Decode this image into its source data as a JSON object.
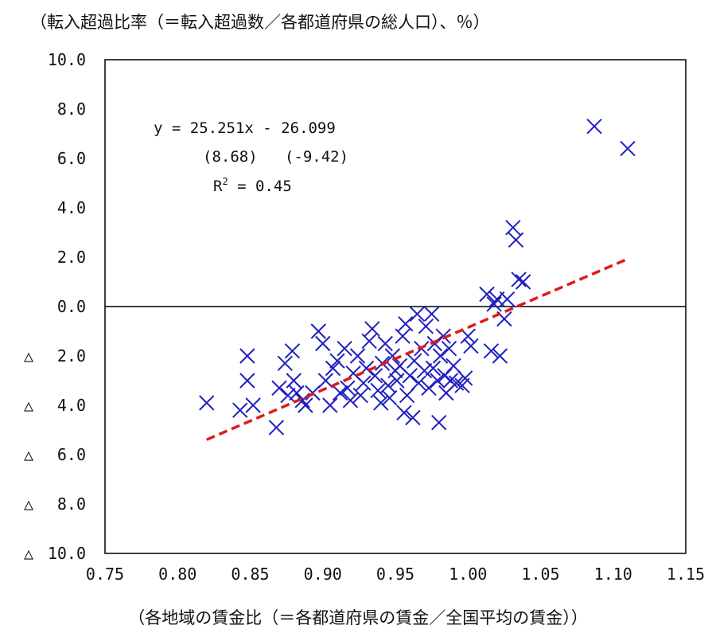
{
  "chart_data": {
    "type": "scatter",
    "ylabel": "（転入超過比率（＝転入超過数／各都道府県の総人口）、％）",
    "xlabel": "（各地域の賃金比（＝各都道府県の賃金／全国平均の賃金））",
    "xlim": [
      0.75,
      1.15
    ],
    "ylim": [
      -10,
      10
    ],
    "xticks": [
      0.75,
      0.8,
      0.85,
      0.9,
      0.95,
      1.0,
      1.05,
      1.1,
      1.15
    ],
    "xtick_labels": [
      "0.75",
      "0.80",
      "0.85",
      "0.90",
      "0.95",
      "1.00",
      "1.05",
      "1.10",
      "1.15"
    ],
    "yticks": [
      10,
      8,
      6,
      4,
      2,
      0,
      -2,
      -4,
      -6,
      -8,
      -10
    ],
    "ytick_labels": [
      "10.0",
      "8.0",
      "6.0",
      "4.0",
      "2.0",
      "0.0",
      "△ 2.0",
      "△ 4.0",
      "△ 6.0",
      "△ 8.0",
      "△ 10.0"
    ],
    "marker_color": "#1f1fbf",
    "trend_color": "#e01a1a",
    "annotation": {
      "equation": "y = 25.251x - 26.099",
      "tstats": "(8.68)   (-9.42)",
      "r2_prefix": "R",
      "r2_sup": "2",
      "r2_value": " = 0.45"
    },
    "trend": {
      "slope": 25.251,
      "intercept": -26.099,
      "x_start": 0.82,
      "x_end": 1.11
    },
    "points": [
      [
        0.82,
        -3.9
      ],
      [
        0.843,
        -4.2
      ],
      [
        0.848,
        -2.0
      ],
      [
        0.848,
        -3.0
      ],
      [
        0.852,
        -4.0
      ],
      [
        0.868,
        -4.9
      ],
      [
        0.87,
        -3.3
      ],
      [
        0.874,
        -2.3
      ],
      [
        0.876,
        -3.6
      ],
      [
        0.879,
        -1.8
      ],
      [
        0.88,
        -3.0
      ],
      [
        0.882,
        -3.5
      ],
      [
        0.886,
        -3.8
      ],
      [
        0.888,
        -4.0
      ],
      [
        0.893,
        -3.5
      ],
      [
        0.897,
        -1.0
      ],
      [
        0.9,
        -1.5
      ],
      [
        0.902,
        -3.0
      ],
      [
        0.905,
        -4.0
      ],
      [
        0.907,
        -2.5
      ],
      [
        0.91,
        -2.2
      ],
      [
        0.912,
        -3.5
      ],
      [
        0.915,
        -1.7
      ],
      [
        0.917,
        -3.3
      ],
      [
        0.919,
        -3.8
      ],
      [
        0.921,
        -2.7
      ],
      [
        0.924,
        -2.0
      ],
      [
        0.926,
        -3.6
      ],
      [
        0.928,
        -3.1
      ],
      [
        0.93,
        -2.5
      ],
      [
        0.932,
        -1.4
      ],
      [
        0.934,
        -0.9
      ],
      [
        0.936,
        -2.8
      ],
      [
        0.938,
        -3.4
      ],
      [
        0.94,
        -3.9
      ],
      [
        0.941,
        -2.3
      ],
      [
        0.943,
        -1.5
      ],
      [
        0.945,
        -3.2
      ],
      [
        0.946,
        -3.7
      ],
      [
        0.948,
        -2.0
      ],
      [
        0.95,
        -2.6
      ],
      [
        0.951,
        -3.0
      ],
      [
        0.953,
        -2.4
      ],
      [
        0.955,
        -1.2
      ],
      [
        0.956,
        -4.3
      ],
      [
        0.957,
        -0.7
      ],
      [
        0.958,
        -3.6
      ],
      [
        0.96,
        -2.8
      ],
      [
        0.962,
        -4.5
      ],
      [
        0.963,
        -2.2
      ],
      [
        0.965,
        -0.3
      ],
      [
        0.966,
        -3.1
      ],
      [
        0.968,
        -1.7
      ],
      [
        0.97,
        -2.6
      ],
      [
        0.971,
        -0.8
      ],
      [
        0.973,
        -3.3
      ],
      [
        0.975,
        -0.3
      ],
      [
        0.976,
        -2.5
      ],
      [
        0.977,
        -1.5
      ],
      [
        0.979,
        -3.0
      ],
      [
        0.98,
        -4.7
      ],
      [
        0.981,
        -2.0
      ],
      [
        0.983,
        -1.2
      ],
      [
        0.984,
        -2.8
      ],
      [
        0.985,
        -3.5
      ],
      [
        0.987,
        -1.7
      ],
      [
        0.988,
        -3.0
      ],
      [
        0.99,
        -2.4
      ],
      [
        0.992,
        -3.1
      ],
      [
        0.996,
        -3.2
      ],
      [
        0.998,
        -2.9
      ],
      [
        1.0,
        -1.2
      ],
      [
        1.002,
        -1.6
      ],
      [
        1.013,
        0.5
      ],
      [
        1.016,
        -1.8
      ],
      [
        1.018,
        0.1
      ],
      [
        1.02,
        0.3
      ],
      [
        1.022,
        -2.0
      ],
      [
        1.025,
        -0.5
      ],
      [
        1.027,
        0.3
      ],
      [
        1.031,
        3.2
      ],
      [
        1.033,
        2.7
      ],
      [
        1.035,
        1.1
      ],
      [
        1.038,
        1.0
      ],
      [
        1.087,
        7.3
      ],
      [
        1.11,
        6.4
      ]
    ]
  }
}
